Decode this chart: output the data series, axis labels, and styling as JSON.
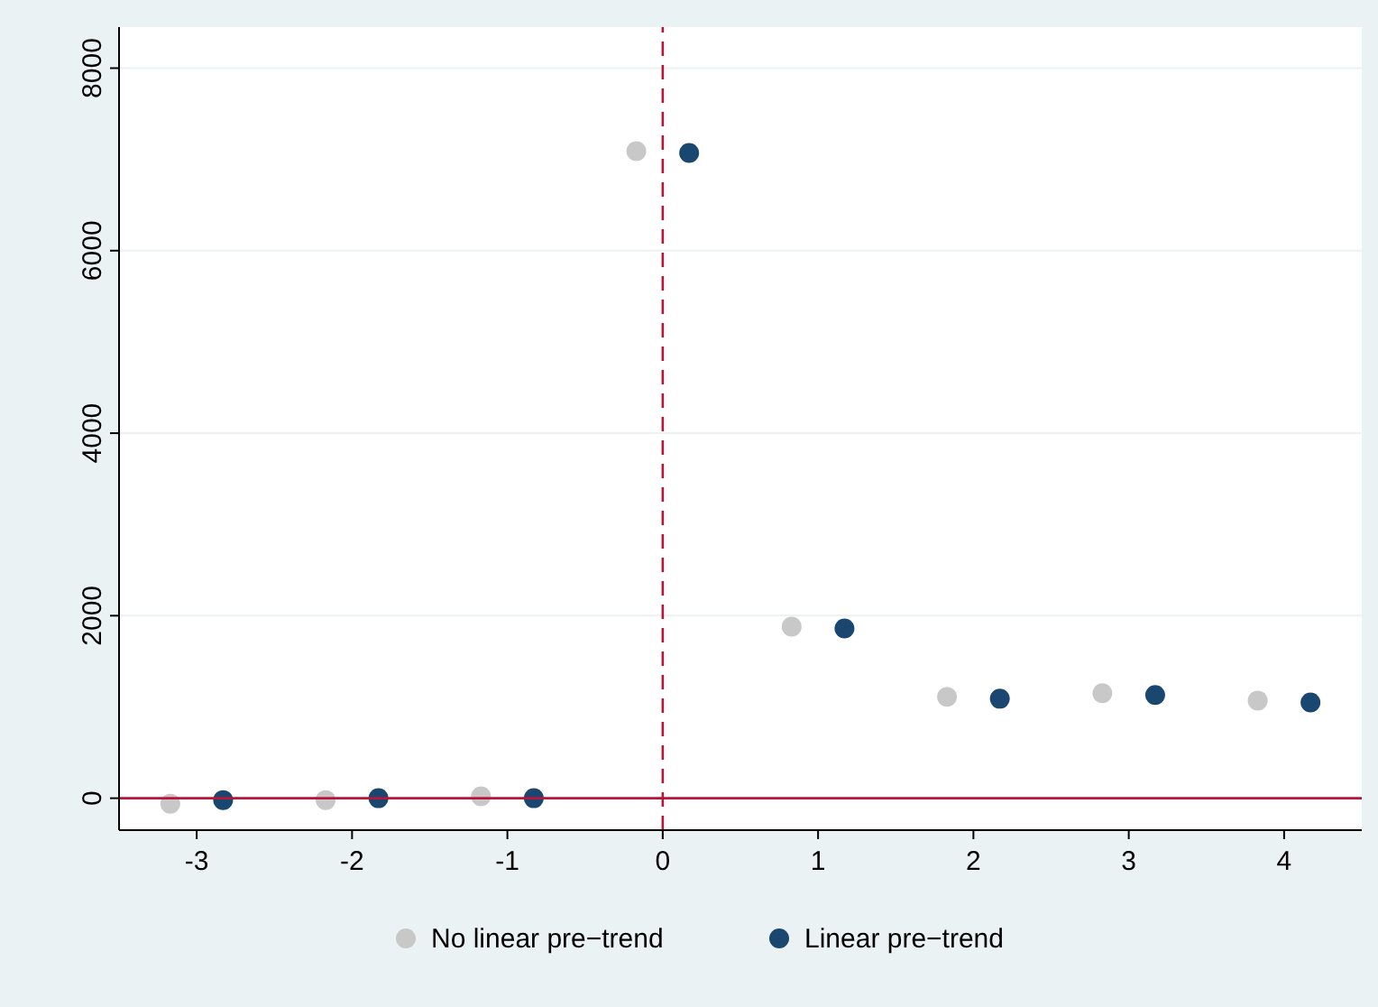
{
  "chart_data": {
    "type": "scatter",
    "xlim": [
      -3.5,
      4.5
    ],
    "ylim": [
      -350,
      8450
    ],
    "xticks": [
      -3,
      -2,
      -1,
      0,
      1,
      2,
      3,
      4
    ],
    "yticks": [
      0,
      2000,
      4000,
      6000,
      8000
    ],
    "grid": "y",
    "legend": "bottom",
    "marker": "circle",
    "series": [
      {
        "name": "No linear pre−trend",
        "color": "#c8c8c8",
        "x": [
          -3.17,
          -2.17,
          -1.17,
          -0.17,
          0.83,
          1.83,
          2.83,
          3.83
        ],
        "values": [
          -60,
          -20,
          20,
          7090,
          1880,
          1110,
          1150,
          1070
        ]
      },
      {
        "name": "Linear pre−trend",
        "color": "#1a476f",
        "x": [
          -2.83,
          -1.83,
          -0.83,
          0.17,
          1.17,
          2.17,
          3.17,
          4.17
        ],
        "values": [
          -20,
          0,
          0,
          7070,
          1860,
          1090,
          1130,
          1050
        ]
      }
    ],
    "ref_lines": [
      {
        "axis": "x",
        "value": 0,
        "color": "#b5163a",
        "line_style": "dashed"
      },
      {
        "axis": "y",
        "value": 0,
        "color": "#b5163a",
        "line_style": "solid"
      }
    ]
  }
}
